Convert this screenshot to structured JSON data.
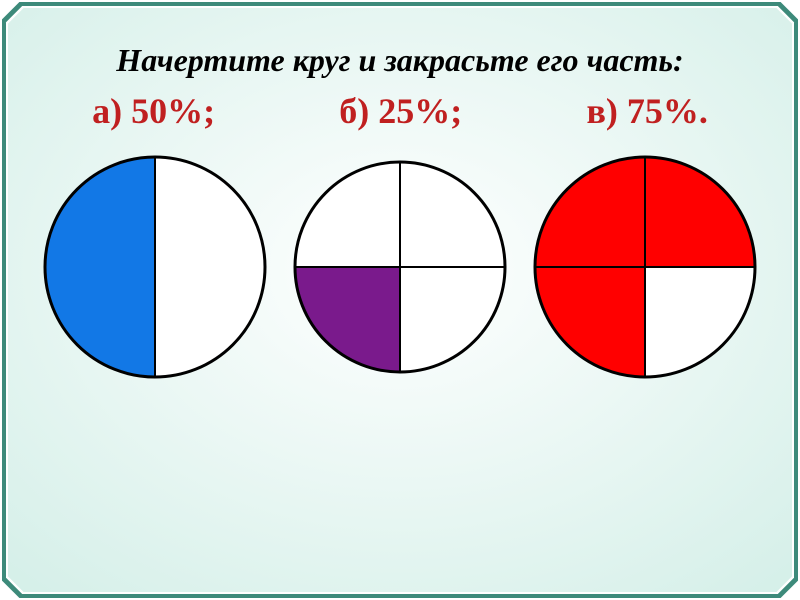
{
  "frame": {
    "background_gradient": {
      "inner": "#ffffff",
      "outer": "#d4efe8"
    },
    "border_outer_color": "#3d8a7a",
    "border_inner_color": "#ffffff",
    "border_outer_width": 4,
    "border_inner_width": 2,
    "corner_cut": 18
  },
  "title": {
    "text": "Начертите круг и закрасьте его часть:",
    "font_size": 32,
    "color": "#000000",
    "font_style": "italic",
    "font_weight": "bold"
  },
  "labels": {
    "items": [
      {
        "text": "а) 50%;",
        "color": "#c02020"
      },
      {
        "text": "б) 25%;",
        "color": "#c02020"
      },
      {
        "text": "в) 75%.",
        "color": "#c02020"
      }
    ],
    "font_size": 36,
    "font_weight": "bold"
  },
  "charts": [
    {
      "type": "pie",
      "radius": 110,
      "stroke_color": "#000000",
      "stroke_width": 3,
      "divider_width": 2,
      "background": "#ffffff",
      "slices": [
        {
          "start_deg": 90,
          "end_deg": 270,
          "fill": "#1278e6"
        },
        {
          "start_deg": 270,
          "end_deg": 450,
          "fill": "#ffffff"
        }
      ],
      "dividers_deg": [
        90,
        270
      ]
    },
    {
      "type": "pie",
      "radius": 105,
      "stroke_color": "#000000",
      "stroke_width": 3,
      "divider_width": 2,
      "background": "#ffffff",
      "slices": [
        {
          "start_deg": 0,
          "end_deg": 90,
          "fill": "#ffffff"
        },
        {
          "start_deg": 90,
          "end_deg": 180,
          "fill": "#ffffff"
        },
        {
          "start_deg": 180,
          "end_deg": 270,
          "fill": "#7a1a8c"
        },
        {
          "start_deg": 270,
          "end_deg": 360,
          "fill": "#ffffff"
        }
      ],
      "dividers_deg": [
        0,
        90,
        180,
        270
      ]
    },
    {
      "type": "pie",
      "radius": 110,
      "stroke_color": "#000000",
      "stroke_width": 3,
      "divider_width": 2,
      "background": "#ffffff",
      "slices": [
        {
          "start_deg": 0,
          "end_deg": 90,
          "fill": "#ff0000"
        },
        {
          "start_deg": 90,
          "end_deg": 180,
          "fill": "#ff0000"
        },
        {
          "start_deg": 180,
          "end_deg": 270,
          "fill": "#ff0000"
        },
        {
          "start_deg": 270,
          "end_deg": 360,
          "fill": "#ffffff"
        }
      ],
      "dividers_deg": [
        0,
        90,
        180,
        270
      ]
    }
  ]
}
